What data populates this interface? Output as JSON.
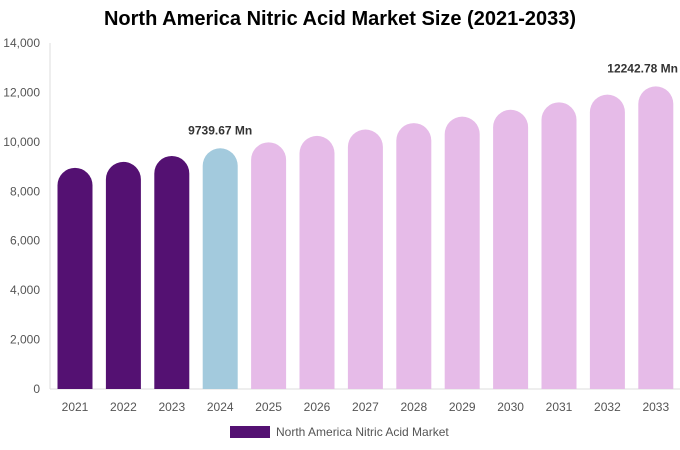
{
  "chart_data": {
    "type": "bar",
    "title": "North America Nitric Acid Market Size (2021-2033)",
    "categories": [
      "2021",
      "2022",
      "2023",
      "2024",
      "2025",
      "2026",
      "2027",
      "2028",
      "2029",
      "2030",
      "2031",
      "2032",
      "2033"
    ],
    "series": [
      {
        "name": "North America Nitric Acid Market",
        "values": [
          8950,
          9190,
          9430,
          9739.67,
          9980,
          10240,
          10500,
          10760,
          11020,
          11300,
          11600,
          11910,
          12242.78
        ]
      }
    ],
    "ylim": [
      0,
      14000
    ],
    "yticks": [
      0,
      2000,
      4000,
      6000,
      8000,
      10000,
      12000,
      14000
    ],
    "ytick_labels": [
      "0",
      "2,000",
      "4,000",
      "6,000",
      "8,000",
      "10,000",
      "12,000",
      "14,000"
    ],
    "bar_colors": [
      "#541172",
      "#541172",
      "#541172",
      "#a3cadd",
      "#e6bbe8",
      "#e6bbe8",
      "#e6bbe8",
      "#e6bbe8",
      "#e6bbe8",
      "#e6bbe8",
      "#e6bbe8",
      "#e6bbe8",
      "#e6bbe8"
    ],
    "data_labels": [
      {
        "index": 3,
        "text": "9739.67 Mn"
      },
      {
        "index": 12,
        "text": "12242.78 Mn"
      }
    ],
    "legend": {
      "position": "bottom",
      "label": "North America Nitric Acid Market",
      "color": "#541172"
    },
    "grid": false
  }
}
